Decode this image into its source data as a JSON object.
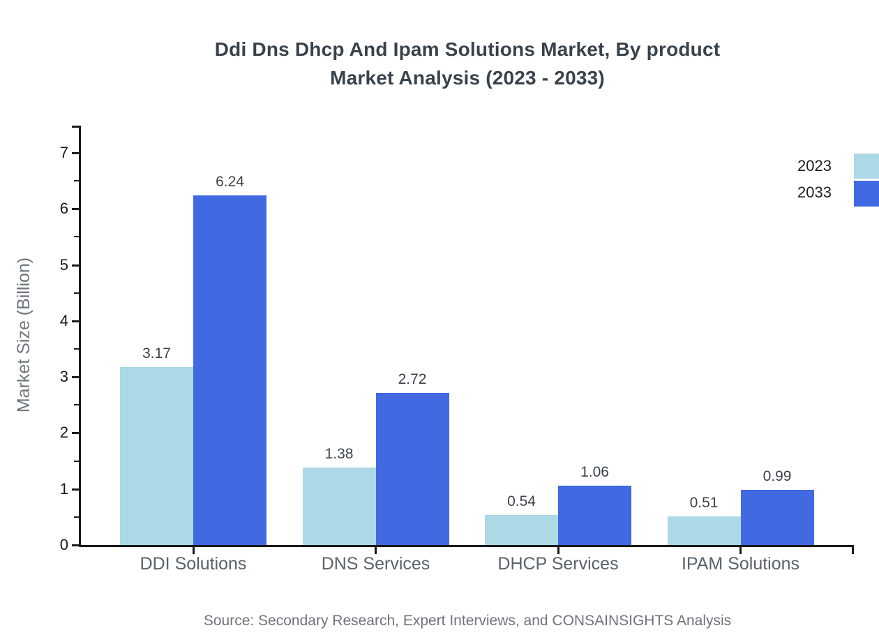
{
  "header": {
    "title_line1": "Ddi Dns Dhcp And Ipam Solutions Market, By product",
    "title_line2": "Market Analysis (2023 - 2033)"
  },
  "footer": {
    "source": "Source: Secondary Research, Expert Interviews, and CONSAINSIGHTS Analysis"
  },
  "chart_data": {
    "type": "bar",
    "title": "Ddi Dns Dhcp And Ipam Solutions Market, By product Market Analysis (2023 - 2033)",
    "title_lines": [
      "Ddi Dns Dhcp And Ipam Solutions Market, By product",
      "Market Analysis (2023 - 2033)"
    ],
    "categories": [
      "DDI Solutions",
      "DNS Services",
      "DHCP Services",
      "IPAM Solutions"
    ],
    "series": [
      {
        "name": "2023",
        "color": "#add8e6",
        "values": [
          3.17,
          1.38,
          0.54,
          0.51
        ]
      },
      {
        "name": "2033",
        "color": "#4169e1",
        "values": [
          6.24,
          2.72,
          1.06,
          0.99
        ]
      }
    ],
    "xlabel": "",
    "ylabel": "Market Size (Billion)",
    "ylim": [
      0,
      7.5
    ],
    "yticks": [
      0,
      1,
      2,
      3,
      4,
      5,
      6,
      7
    ],
    "minor_ytick_step": 0.5,
    "grid": false,
    "legend_position": "upper-right-outside",
    "value_labels": true,
    "source": "Source: Secondary Research, Expert Interviews, and CONSAINSIGHTS Analysis"
  }
}
